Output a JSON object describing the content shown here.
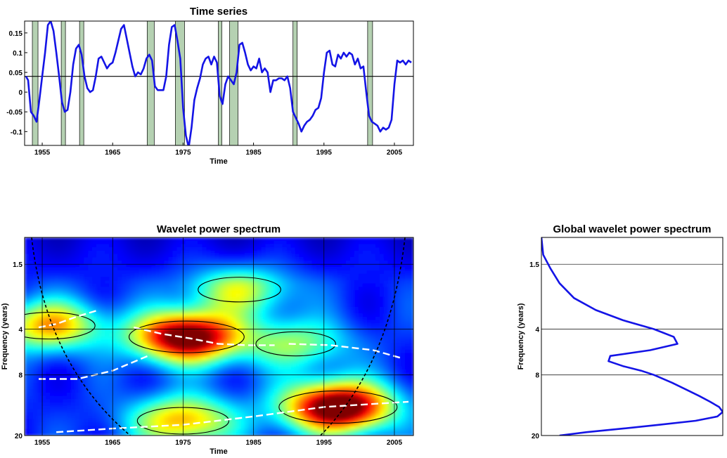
{
  "chart_data": [
    {
      "id": "time-series",
      "type": "line",
      "title": "Time series",
      "xlabel": "Time",
      "ylabel": "",
      "xlim": [
        1952.5,
        2007.7
      ],
      "ylim": [
        -0.135,
        0.18
      ],
      "xticks": [
        "1955",
        "1965",
        "1975",
        "1985",
        "1995",
        "2005"
      ],
      "yticks": [
        "0.15",
        "0.1",
        "0.05",
        "0",
        "-0.05",
        "-0.1"
      ],
      "reference_line": 0.04,
      "line_color": "#1414e6",
      "band_color": "#b5d1b2",
      "shaded_periods": [
        [
          1953.6,
          1954.4
        ],
        [
          1957.7,
          1958.3
        ],
        [
          1960.3,
          1960.9
        ],
        [
          1969.9,
          1970.9
        ],
        [
          1973.9,
          1975.2
        ],
        [
          1980.0,
          1980.5
        ],
        [
          1981.6,
          1982.8
        ],
        [
          1990.6,
          1991.2
        ],
        [
          2001.2,
          2001.9
        ]
      ],
      "series": [
        {
          "x": [
            1952.7,
            1953.0,
            1953.4,
            1953.8,
            1954.2,
            1954.6,
            1955.0,
            1955.4,
            1955.8,
            1956.2,
            1956.6,
            1957.0,
            1957.4,
            1957.8,
            1958.2,
            1958.6,
            1959.0,
            1959.4,
            1959.8,
            1960.2,
            1960.6,
            1961.0,
            1961.4,
            1961.8,
            1962.2,
            1962.6,
            1963.0,
            1963.4,
            1963.8,
            1964.2,
            1964.6,
            1965.0,
            1965.4,
            1965.8,
            1966.2,
            1966.6,
            1967.0,
            1967.4,
            1967.8,
            1968.2,
            1968.6,
            1969.0,
            1969.4,
            1969.8,
            1970.2,
            1970.6,
            1971.0,
            1971.4,
            1971.8,
            1972.2,
            1972.6,
            1973.0,
            1973.4,
            1973.8,
            1974.2,
            1974.6,
            1975.0,
            1975.4,
            1975.8,
            1976.2,
            1976.6,
            1977.0,
            1977.4,
            1977.8,
            1978.2,
            1978.6,
            1979.0,
            1979.4,
            1979.8,
            1980.2,
            1980.6,
            1981.0,
            1981.4,
            1981.8,
            1982.2,
            1982.6,
            1983.0,
            1983.4,
            1983.8,
            1984.2,
            1984.6,
            1985.0,
            1985.4,
            1985.8,
            1986.2,
            1986.6,
            1987.0,
            1987.4,
            1987.8,
            1988.2,
            1988.6,
            1989.0,
            1989.4,
            1989.8,
            1990.2,
            1990.6,
            1991.0,
            1991.4,
            1991.8,
            1992.2,
            1992.6,
            1993.0,
            1993.4,
            1993.8,
            1994.2,
            1994.6,
            1995.0,
            1995.4,
            1995.8,
            1996.2,
            1996.6,
            1997.0,
            1997.4,
            1997.8,
            1998.2,
            1998.6,
            1999.0,
            1999.4,
            1999.8,
            2000.2,
            2000.6,
            2001.0,
            2001.4,
            2001.8,
            2002.2,
            2002.6,
            2003.0,
            2003.4,
            2003.8,
            2004.2,
            2004.6,
            2005.0,
            2005.4,
            2005.8,
            2006.2,
            2006.6,
            2007.0,
            2007.4
          ],
          "y": [
            0.04,
            0.03,
            -0.05,
            -0.06,
            -0.075,
            -0.02,
            0.04,
            0.1,
            0.17,
            0.18,
            0.155,
            0.1,
            0.04,
            -0.025,
            -0.05,
            -0.045,
            0.0,
            0.07,
            0.11,
            0.12,
            0.095,
            0.04,
            0.01,
            0.0,
            0.005,
            0.04,
            0.085,
            0.09,
            0.075,
            0.06,
            0.07,
            0.075,
            0.1,
            0.13,
            0.16,
            0.17,
            0.135,
            0.1,
            0.065,
            0.04,
            0.05,
            0.045,
            0.06,
            0.085,
            0.095,
            0.08,
            0.015,
            0.005,
            0.005,
            0.005,
            0.04,
            0.12,
            0.165,
            0.17,
            0.13,
            0.085,
            -0.04,
            -0.11,
            -0.14,
            -0.09,
            -0.02,
            0.01,
            0.035,
            0.07,
            0.085,
            0.09,
            0.07,
            0.09,
            0.075,
            -0.01,
            -0.03,
            0.02,
            0.04,
            0.03,
            0.02,
            0.05,
            0.12,
            0.125,
            0.1,
            0.07,
            0.055,
            0.065,
            0.06,
            0.085,
            0.05,
            0.06,
            0.05,
            0.0,
            0.03,
            0.03,
            0.035,
            0.035,
            0.03,
            0.04,
            0.01,
            -0.05,
            -0.065,
            -0.08,
            -0.1,
            -0.085,
            -0.075,
            -0.07,
            -0.06,
            -0.045,
            -0.04,
            -0.015,
            0.05,
            0.1,
            0.105,
            0.07,
            0.065,
            0.095,
            0.085,
            0.1,
            0.09,
            0.1,
            0.095,
            0.07,
            0.085,
            0.06,
            0.065,
            0.0,
            -0.06,
            -0.075,
            -0.08,
            -0.085,
            -0.1,
            -0.09,
            -0.095,
            -0.09,
            -0.07,
            0.02,
            0.08,
            0.075,
            0.08,
            0.07,
            0.08,
            0.075
          ]
        }
      ]
    },
    {
      "id": "wavelet-power",
      "type": "heatmap",
      "title": "Wavelet power spectrum",
      "xlabel": "Time",
      "ylabel": "Frequency (years)",
      "xlim": [
        1952.5,
        2007.7
      ],
      "y_scale": "log2",
      "ylim": [
        1.0,
        20
      ],
      "y_reversed": true,
      "xticks": [
        "1955",
        "1965",
        "1975",
        "1985",
        "1995",
        "2005"
      ],
      "yticks": [
        "1.5",
        "4",
        "8",
        "20"
      ],
      "grid": true,
      "colormap": "jet",
      "hotspots": [
        {
          "time": 1956,
          "period": 3.8,
          "power": 0.55
        },
        {
          "time": 1975.5,
          "period": 4.5,
          "power": 0.95
        },
        {
          "time": 1997,
          "period": 13,
          "power": 1.0
        },
        {
          "time": 1975,
          "period": 16,
          "power": 0.55
        },
        {
          "time": 1983,
          "period": 2.2,
          "power": 0.4
        },
        {
          "time": 1991,
          "period": 5,
          "power": 0.35
        }
      ],
      "maxima_ridges": [
        {
          "x": [
            1954.5,
            1957,
            1960,
            1963
          ],
          "y": [
            3.9,
            3.7,
            3.3,
            3.0
          ]
        },
        {
          "x": [
            1968,
            1972,
            1976,
            1980,
            1984,
            1988
          ],
          "y": [
            3.9,
            4.3,
            4.6,
            5.0,
            5.1,
            5.1
          ]
        },
        {
          "x": [
            1990,
            1996,
            2002,
            2006
          ],
          "y": [
            5.0,
            5.1,
            5.5,
            6.2
          ]
        },
        {
          "x": [
            1954.5,
            1960,
            1965,
            1970
          ],
          "y": [
            8.5,
            8.5,
            7.5,
            6.0
          ]
        },
        {
          "x": [
            1957,
            1965,
            1975,
            1985,
            1995,
            2007
          ],
          "y": [
            19,
            18,
            17,
            15,
            13,
            12
          ]
        }
      ],
      "cone_of_influence": {
        "left_edge_year": 1953.5,
        "left_bottom_year": 1967.5,
        "right_edge_year": 2006.5,
        "right_bottom_year": 1994.5
      }
    },
    {
      "id": "global-wavelet",
      "type": "line",
      "title": "Global wavelet power spectrum",
      "xlabel": "",
      "ylabel": "Frequency (years)",
      "y_scale": "log2",
      "ylim": [
        1.0,
        20
      ],
      "y_reversed": true,
      "yticks": [
        "1.5",
        "4",
        "8",
        "20"
      ],
      "xlim": [
        0,
        1
      ],
      "line_color": "#1414e6",
      "series": [
        {
          "period": [
            1.0,
            1.3,
            1.6,
            2.0,
            2.5,
            3.0,
            3.5,
            4.0,
            4.5,
            5.0,
            5.5,
            6.0,
            6.5,
            7.0,
            7.5,
            8.0,
            9.0,
            10.0,
            11.0,
            12.0,
            13.0,
            14.0,
            15.0,
            16.0,
            17.0,
            18.0,
            19.0,
            20.0
          ],
          "power": [
            0.0,
            0.01,
            0.05,
            0.1,
            0.18,
            0.3,
            0.45,
            0.62,
            0.73,
            0.75,
            0.6,
            0.38,
            0.37,
            0.45,
            0.55,
            0.62,
            0.72,
            0.8,
            0.87,
            0.93,
            0.98,
            1.0,
            0.97,
            0.85,
            0.65,
            0.45,
            0.25,
            0.1
          ]
        }
      ]
    }
  ]
}
